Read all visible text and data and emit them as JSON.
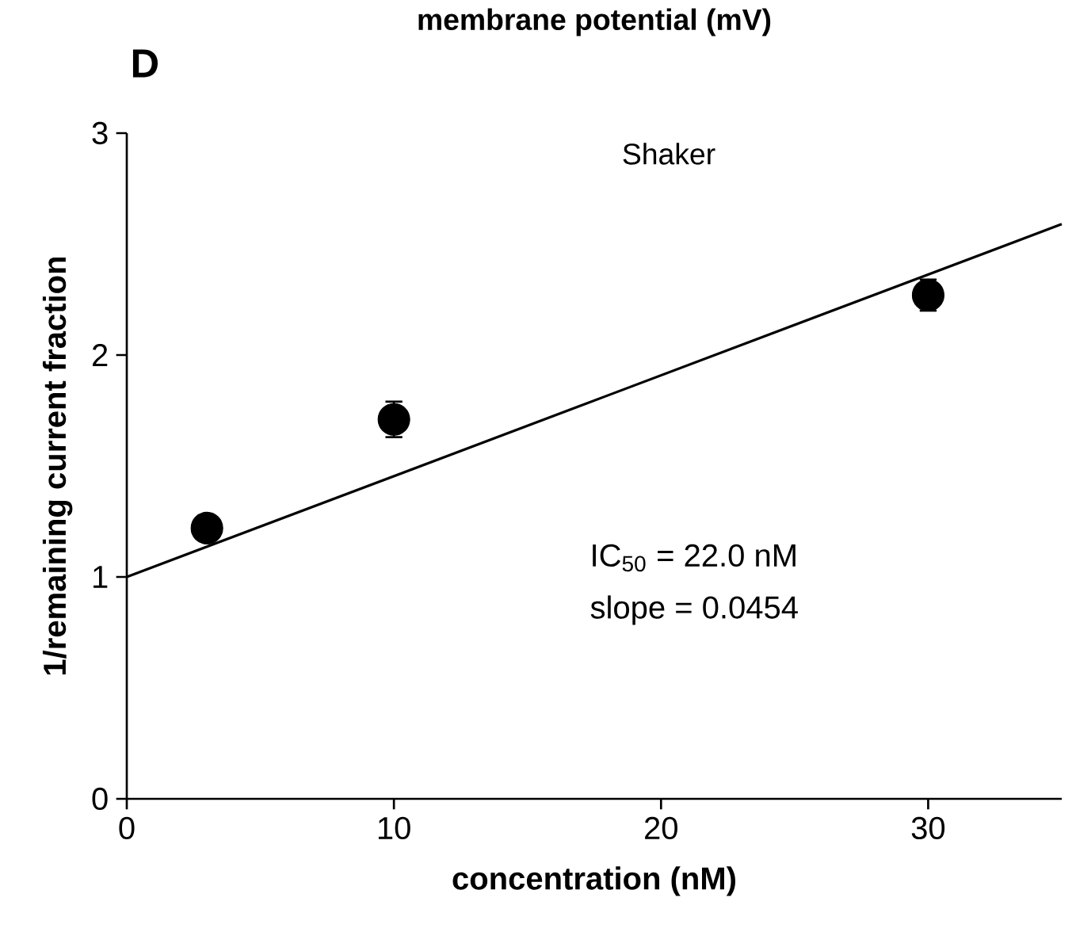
{
  "chart_data": {
    "type": "scatter",
    "xlabel": "concentration (nM)",
    "ylabel": "1/remaining current fraction",
    "annotations": [
      "D",
      "membrane potential (mV)",
      "Shaker",
      "IC$_{50}$ = 22.0 nM",
      "slope = 0.0454"
    ],
    "xlim": [
      0,
      35
    ],
    "ylim": [
      0,
      3
    ],
    "xticks": [
      0,
      10,
      20,
      30
    ],
    "yticks": [
      0,
      1,
      2,
      3
    ],
    "grid": false,
    "series": [
      {
        "marker": "circle",
        "color": "#000000",
        "x": [
          3,
          10,
          30
        ],
        "values": [
          1.22,
          1.71,
          2.27
        ],
        "errors": [
          0.03,
          0.08,
          0.07
        ]
      },
      {
        "type": "line",
        "color": "#000000",
        "line_style": "solid",
        "x": [
          0,
          35
        ],
        "values": [
          1.0,
          2.59
        ]
      }
    ]
  }
}
